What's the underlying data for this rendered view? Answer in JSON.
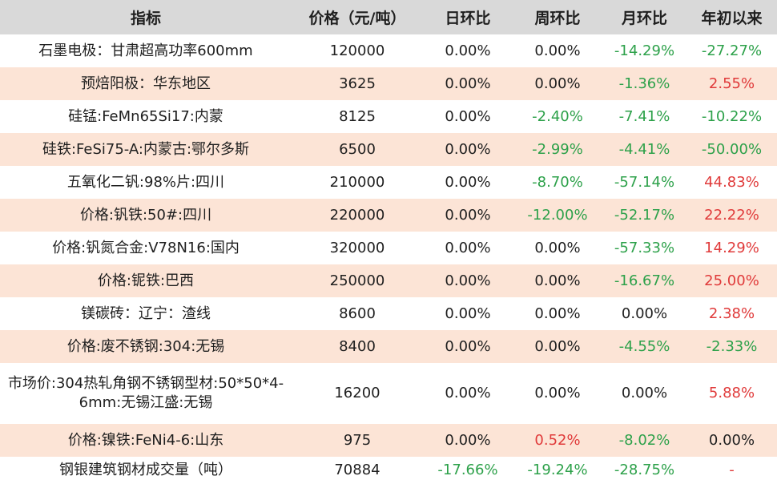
{
  "headers": [
    "指标",
    "价格（元/吨）",
    "日环比",
    "周环比",
    "月环比",
    "年初以来"
  ],
  "colors": {
    "up": "#e03a3a",
    "down": "#2da14a",
    "shade": "#fce4d6",
    "header": "#d9d9d9"
  },
  "rows": [
    [
      "石墨电极：甘肃超高功率600mm",
      "120000",
      "0.00%",
      "0.00%",
      "-14.29%",
      "-27.27%"
    ],
    [
      "预焙阳极：华东地区",
      "3625",
      "0.00%",
      "0.00%",
      "-1.36%",
      "2.55%"
    ],
    [
      "硅锰:FeMn65Si17:内蒙",
      "8125",
      "0.00%",
      "-2.40%",
      "-7.41%",
      "-10.22%"
    ],
    [
      "硅铁:FeSi75-A:内蒙古:鄂尔多斯",
      "6500",
      "0.00%",
      "-2.99%",
      "-4.41%",
      "-50.00%"
    ],
    [
      "五氧化二钒:98%片:四川",
      "210000",
      "0.00%",
      "-8.70%",
      "-57.14%",
      "44.83%"
    ],
    [
      "价格:钒铁:50#:四川",
      "220000",
      "0.00%",
      "-12.00%",
      "-52.17%",
      "22.22%"
    ],
    [
      "价格:钒氮合金:V78N16:国内",
      "320000",
      "0.00%",
      "0.00%",
      "-57.33%",
      "14.29%"
    ],
    [
      "价格:铌铁:巴西",
      "250000",
      "0.00%",
      "0.00%",
      "-16.67%",
      "25.00%"
    ],
    [
      "镁碳砖：辽宁：渣线",
      "8600",
      "0.00%",
      "0.00%",
      "0.00%",
      "2.38%"
    ],
    [
      "价格:废不锈钢:304:无锡",
      "8400",
      "0.00%",
      "0.00%",
      "-4.55%",
      "-2.33%"
    ],
    [
      "市场价:304热轧角钢不锈钢型材:50*50*4-6mm:无锡江盛:无锡",
      "16200",
      "0.00%",
      "0.00%",
      "0.00%",
      "5.88%"
    ],
    [
      "价格:镍铁:FeNi4-6:山东",
      "975",
      "0.00%",
      "0.52%",
      "-8.02%",
      "0.00%"
    ],
    [
      "钢银建筑钢材成交量（吨）",
      "70884",
      "-17.66%",
      "-19.24%",
      "-28.75%",
      "-"
    ]
  ]
}
